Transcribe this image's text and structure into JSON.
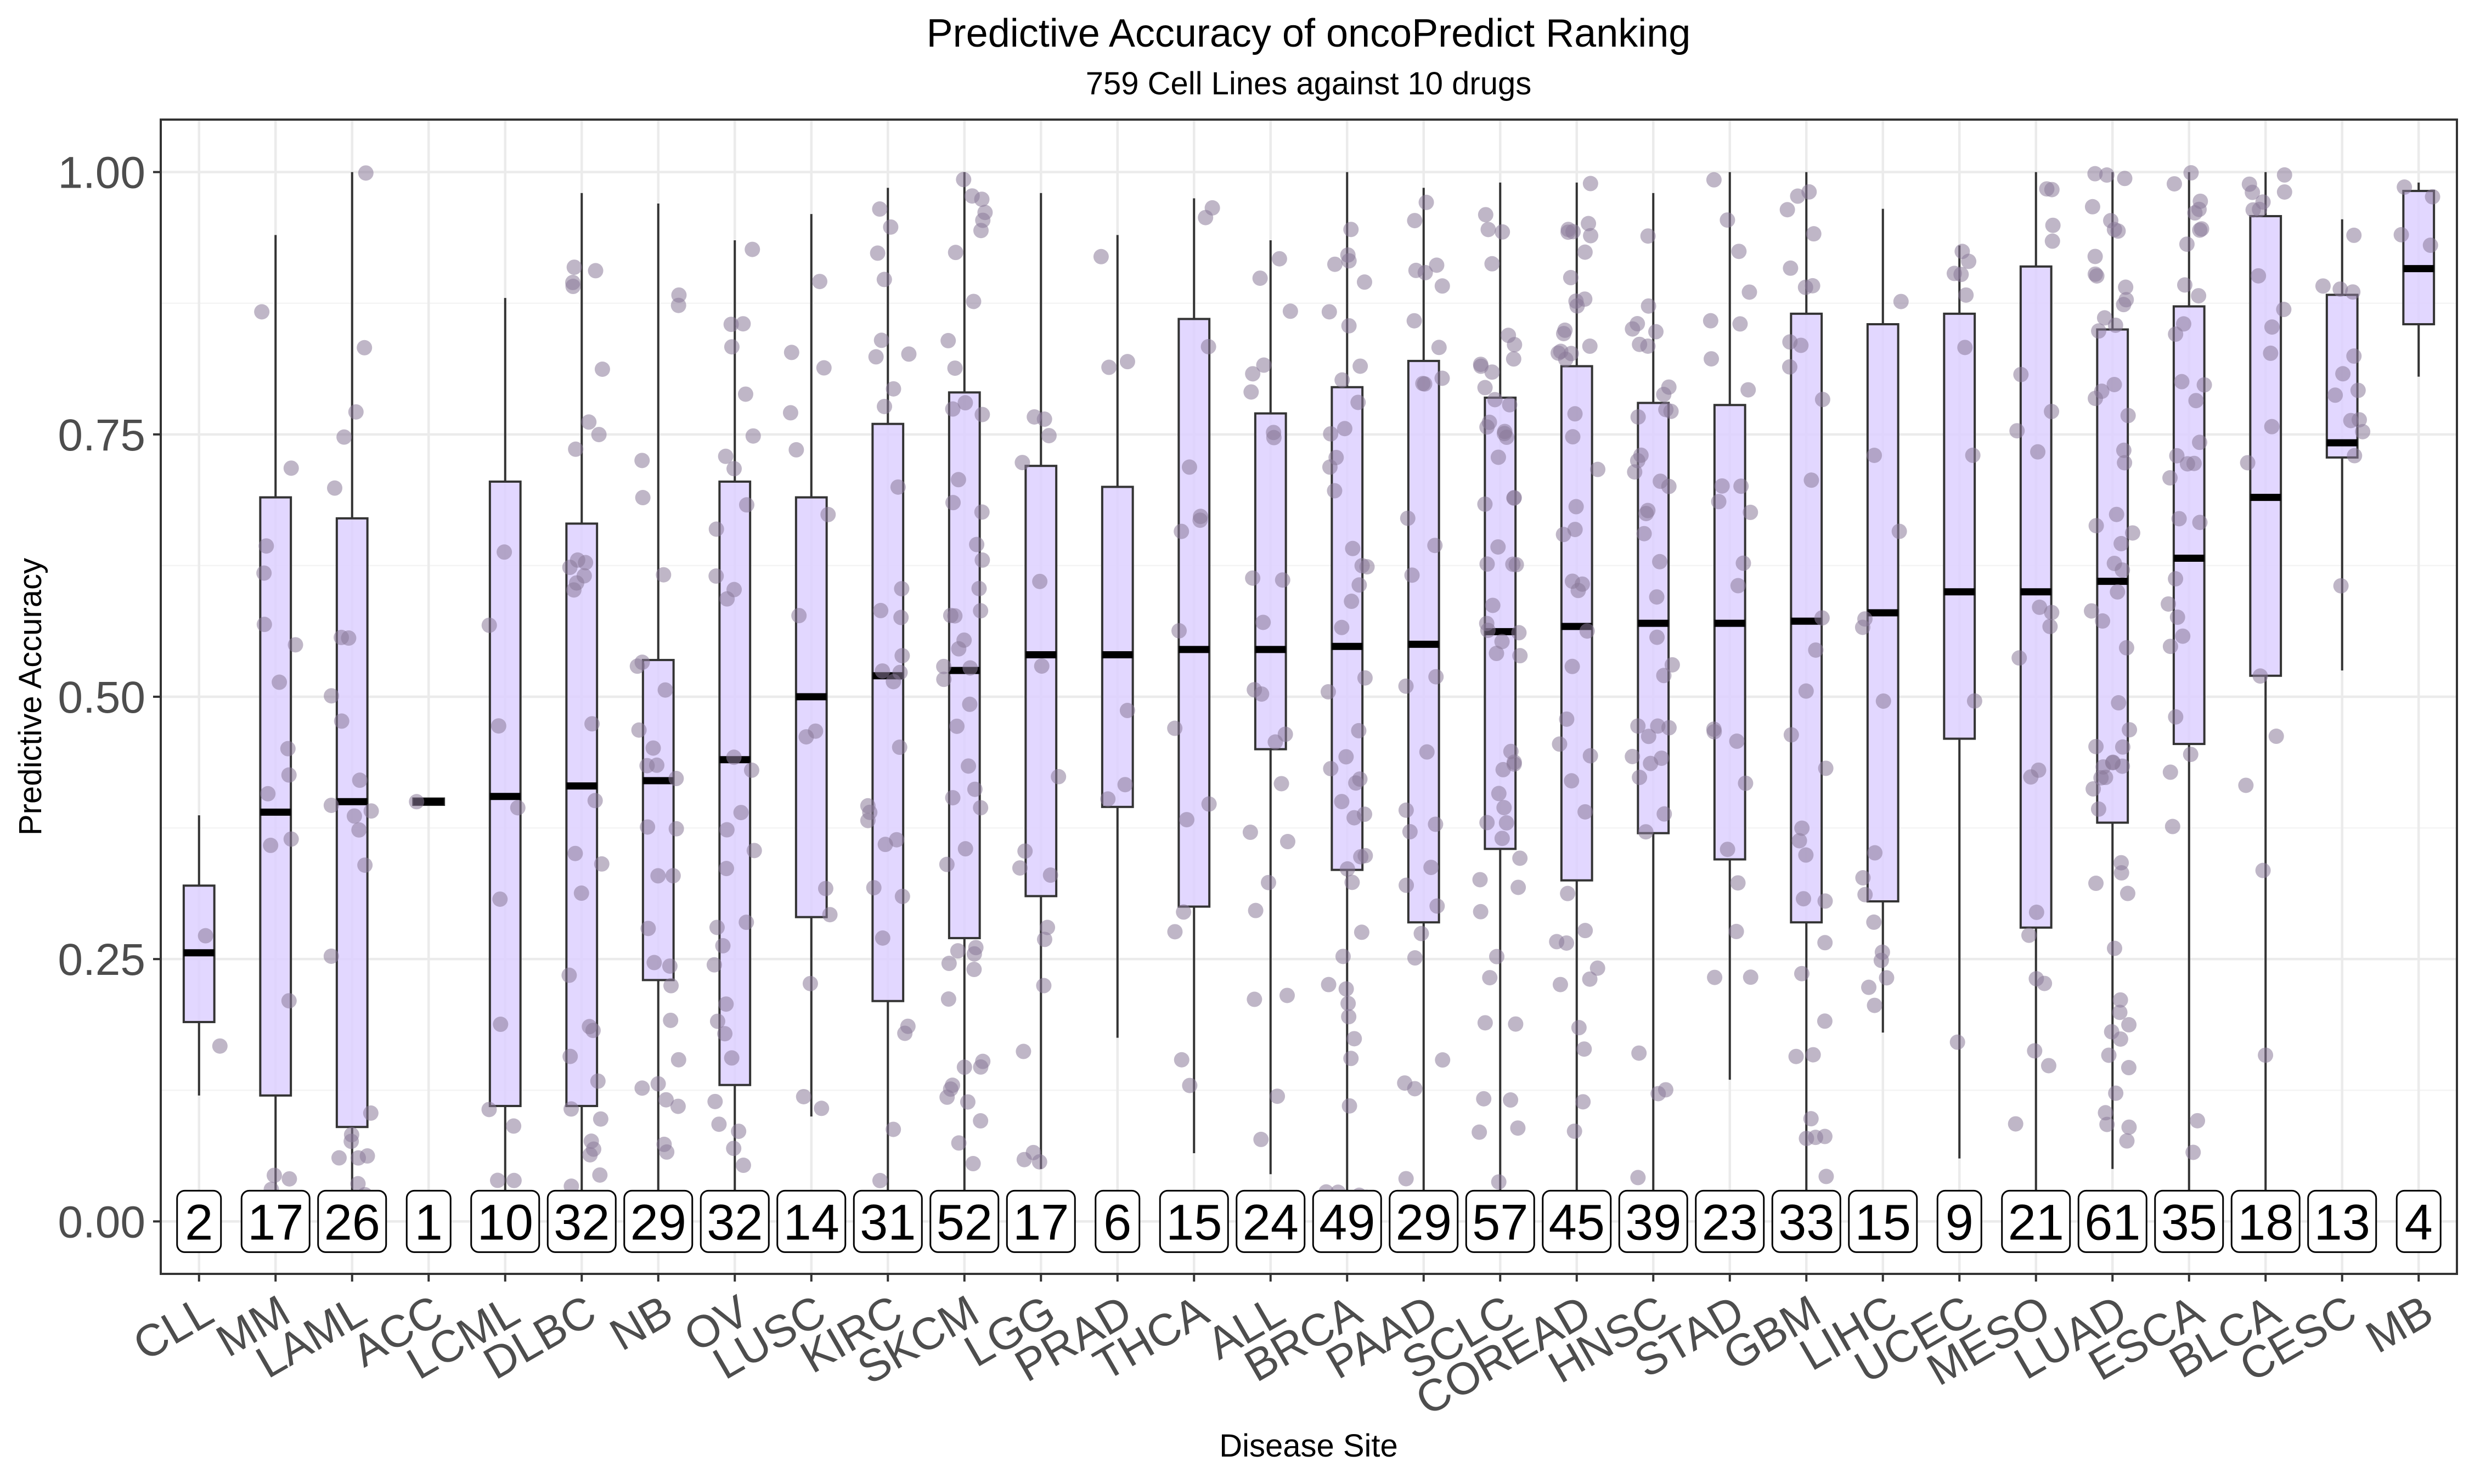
{
  "chart_data": {
    "type": "box",
    "title": "Predictive Accuracy of oncoPredict Ranking",
    "subtitle": "759 Cell Lines against 10 drugs",
    "xlabel": "Disease Site",
    "ylabel": "Predictive Accuracy",
    "ylim": [
      -0.05,
      1.05
    ],
    "yticks": [
      0.0,
      0.25,
      0.5,
      0.75,
      1.0
    ],
    "ytick_labels": [
      "0.00",
      "0.25",
      "0.50",
      "0.75",
      "1.00"
    ],
    "grid": true,
    "legend": "none",
    "colors": {
      "box_fill": "#ddd0ff",
      "box_stroke": "#333333",
      "median": "#000000",
      "points": "#8a7a99"
    },
    "categories": [
      {
        "name": "CLL",
        "n": "2",
        "q1": 0.19,
        "median": 0.256,
        "q3": 0.32,
        "lo": 0.12,
        "hi": 0.387
      },
      {
        "name": "MM",
        "n": "17",
        "q1": 0.12,
        "median": 0.39,
        "q3": 0.69,
        "lo": 0.0,
        "hi": 0.94
      },
      {
        "name": "LAML",
        "n": "26",
        "q1": 0.09,
        "median": 0.4,
        "q3": 0.67,
        "lo": 0.0,
        "hi": 1.0
      },
      {
        "name": "ACC",
        "n": "1",
        "q1": 0.397,
        "median": 0.4,
        "q3": 0.403,
        "lo": 0.397,
        "hi": 0.403
      },
      {
        "name": "LCML",
        "n": "10",
        "q1": 0.11,
        "median": 0.405,
        "q3": 0.705,
        "lo": 0.0,
        "hi": 0.88
      },
      {
        "name": "DLBC",
        "n": "32",
        "q1": 0.11,
        "median": 0.415,
        "q3": 0.665,
        "lo": 0.0,
        "hi": 0.98
      },
      {
        "name": "NB",
        "n": "29",
        "q1": 0.23,
        "median": 0.42,
        "q3": 0.535,
        "lo": 0.0,
        "hi": 0.97
      },
      {
        "name": "OV",
        "n": "32",
        "q1": 0.13,
        "median": 0.44,
        "q3": 0.705,
        "lo": 0.0,
        "hi": 0.935
      },
      {
        "name": "LUSC",
        "n": "14",
        "q1": 0.29,
        "median": 0.5,
        "q3": 0.69,
        "lo": 0.1,
        "hi": 0.96
      },
      {
        "name": "KIRC",
        "n": "31",
        "q1": 0.21,
        "median": 0.52,
        "q3": 0.76,
        "lo": 0.0,
        "hi": 0.985
      },
      {
        "name": "SKCM",
        "n": "52",
        "q1": 0.27,
        "median": 0.525,
        "q3": 0.79,
        "lo": 0.0,
        "hi": 1.0
      },
      {
        "name": "LGG",
        "n": "17",
        "q1": 0.31,
        "median": 0.54,
        "q3": 0.72,
        "lo": 0.05,
        "hi": 0.98
      },
      {
        "name": "PRAD",
        "n": "6",
        "q1": 0.395,
        "median": 0.54,
        "q3": 0.7,
        "lo": 0.175,
        "hi": 0.94
      },
      {
        "name": "THCA",
        "n": "15",
        "q1": 0.3,
        "median": 0.545,
        "q3": 0.86,
        "lo": 0.065,
        "hi": 0.975
      },
      {
        "name": "ALL",
        "n": "24",
        "q1": 0.45,
        "median": 0.545,
        "q3": 0.77,
        "lo": 0.045,
        "hi": 0.935
      },
      {
        "name": "BRCA",
        "n": "49",
        "q1": 0.335,
        "median": 0.548,
        "q3": 0.795,
        "lo": 0.0,
        "hi": 1.0
      },
      {
        "name": "PAAD",
        "n": "29",
        "q1": 0.285,
        "median": 0.55,
        "q3": 0.82,
        "lo": 0.0,
        "hi": 0.985
      },
      {
        "name": "SCLC",
        "n": "57",
        "q1": 0.355,
        "median": 0.562,
        "q3": 0.785,
        "lo": 0.0,
        "hi": 0.99
      },
      {
        "name": "COREAD",
        "n": "45",
        "q1": 0.325,
        "median": 0.567,
        "q3": 0.815,
        "lo": 0.0,
        "hi": 0.99
      },
      {
        "name": "HNSC",
        "n": "39",
        "q1": 0.37,
        "median": 0.57,
        "q3": 0.78,
        "lo": 0.0,
        "hi": 0.98
      },
      {
        "name": "STAD",
        "n": "23",
        "q1": 0.345,
        "median": 0.57,
        "q3": 0.778,
        "lo": 0.135,
        "hi": 1.0
      },
      {
        "name": "GBM",
        "n": "33",
        "q1": 0.285,
        "median": 0.572,
        "q3": 0.865,
        "lo": 0.0,
        "hi": 1.0
      },
      {
        "name": "LIHC",
        "n": "15",
        "q1": 0.305,
        "median": 0.58,
        "q3": 0.855,
        "lo": 0.18,
        "hi": 0.965
      },
      {
        "name": "UCEC",
        "n": "9",
        "q1": 0.46,
        "median": 0.6,
        "q3": 0.865,
        "lo": 0.06,
        "hi": 0.93
      },
      {
        "name": "MESO",
        "n": "21",
        "q1": 0.28,
        "median": 0.6,
        "q3": 0.91,
        "lo": 0.0,
        "hi": 1.0
      },
      {
        "name": "LUAD",
        "n": "61",
        "q1": 0.38,
        "median": 0.61,
        "q3": 0.85,
        "lo": 0.05,
        "hi": 1.0
      },
      {
        "name": "ESCA",
        "n": "35",
        "q1": 0.455,
        "median": 0.632,
        "q3": 0.872,
        "lo": 0.0,
        "hi": 1.0
      },
      {
        "name": "BLCA",
        "n": "18",
        "q1": 0.52,
        "median": 0.69,
        "q3": 0.958,
        "lo": 0.0,
        "hi": 1.0
      },
      {
        "name": "CESC",
        "n": "13",
        "q1": 0.728,
        "median": 0.742,
        "q3": 0.883,
        "lo": 0.525,
        "hi": 0.955
      },
      {
        "name": "MB",
        "n": "4",
        "q1": 0.855,
        "median": 0.908,
        "q3": 0.982,
        "lo": 0.805,
        "hi": 0.99
      }
    ]
  }
}
